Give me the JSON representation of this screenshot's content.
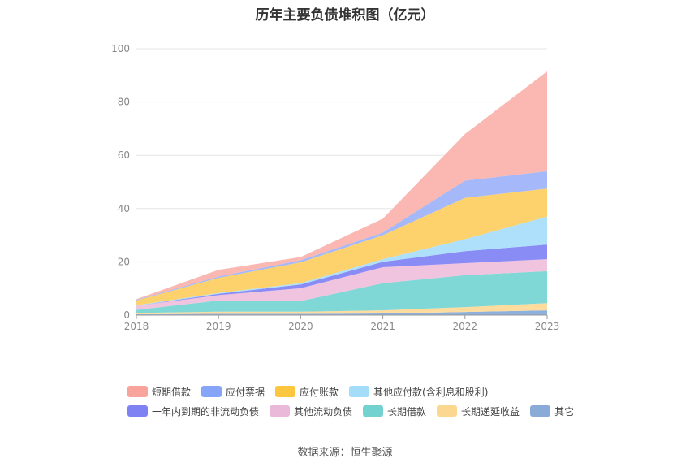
{
  "chart_data": {
    "type": "area",
    "stacked": true,
    "title": "历年主要负债堆积图（亿元）",
    "categories": [
      "2018",
      "2019",
      "2020",
      "2021",
      "2022",
      "2023"
    ],
    "ylim": [
      0,
      100
    ],
    "yticks": [
      0,
      20,
      40,
      60,
      80,
      100
    ],
    "grid": true,
    "legend_position": "bottom",
    "series": [
      {
        "name": "其它",
        "color": "#8eb0dc",
        "values": [
          0.3,
          0.5,
          0.5,
          0.6,
          1.2,
          1.8
        ]
      },
      {
        "name": "长期递延收益",
        "color": "#fddc9e",
        "values": [
          0.5,
          0.8,
          0.8,
          1.2,
          1.8,
          2.7
        ]
      },
      {
        "name": "长期借款",
        "color": "#80d8d6",
        "values": [
          1.2,
          4.2,
          4.0,
          10.2,
          12.0,
          12.0
        ]
      },
      {
        "name": "其他流动负债",
        "color": "#f0c3df",
        "values": [
          1.5,
          2.0,
          4.8,
          6.0,
          4.5,
          4.5
        ]
      },
      {
        "name": "一年内到期的非流动负债",
        "color": "#8a8cf5",
        "values": [
          0.0,
          0.5,
          1.4,
          2.0,
          4.5,
          5.5
        ]
      },
      {
        "name": "其他应付款(含利息和股利)",
        "color": "#aee0fb",
        "values": [
          0.2,
          0.3,
          0.5,
          1.0,
          4.5,
          10.5
        ]
      },
      {
        "name": "应付账款",
        "color": "#fdd26c",
        "values": [
          1.8,
          5.7,
          7.8,
          9.0,
          15.5,
          10.5
        ]
      },
      {
        "name": "应付票据",
        "color": "#a4b8fa",
        "values": [
          0.2,
          0.5,
          0.8,
          1.0,
          6.5,
          6.5
        ]
      },
      {
        "name": "短期借款",
        "color": "#fbb7b1",
        "values": [
          0.3,
          2.5,
          1.2,
          5.2,
          17.5,
          37.5
        ]
      }
    ]
  },
  "legend": {
    "row1": [
      {
        "label": "短期借款",
        "color": "#f8a39b"
      },
      {
        "label": "应付票据",
        "color": "#87a5f8"
      },
      {
        "label": "应付账款",
        "color": "#fcc63f"
      },
      {
        "label": "其他应付款(含利息和股利)",
        "color": "#a3ddf9"
      }
    ],
    "row2": [
      {
        "label": "一年内到期的非流动负债",
        "color": "#7f82f3"
      },
      {
        "label": "其他流动负债",
        "color": "#eab8d8"
      },
      {
        "label": "长期借款",
        "color": "#72d2cf"
      },
      {
        "label": "长期递延收益",
        "color": "#fcd790"
      },
      {
        "label": "其它",
        "color": "#8aabd8"
      }
    ]
  },
  "source_note": "数据来源：恒生聚源"
}
